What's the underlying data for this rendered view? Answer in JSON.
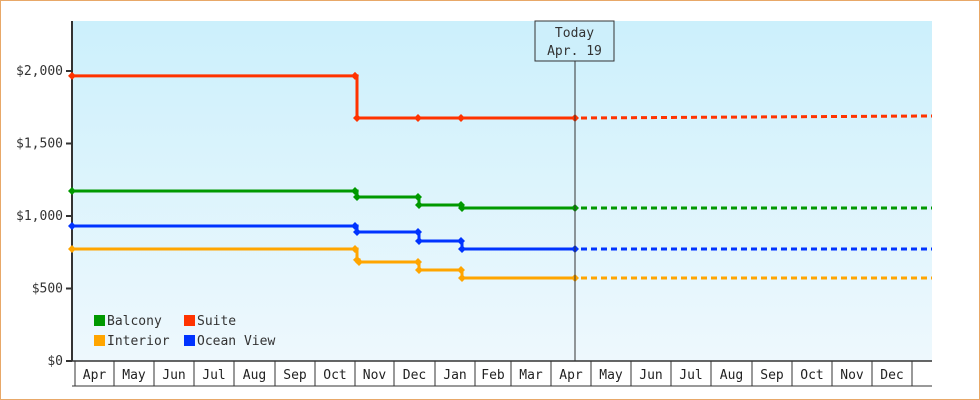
{
  "chart_data": {
    "type": "line",
    "title": "",
    "xlabel": "",
    "ylabel": "",
    "ylim": [
      0,
      2350
    ],
    "y_ticks": [
      "$0",
      "$500",
      "$1,000",
      "$1,500",
      "$2,000"
    ],
    "y_tick_values": [
      0,
      500,
      1000,
      1500,
      2000
    ],
    "x_tick_labels": [
      "Apr",
      "May",
      "Jun",
      "Jul",
      "Aug",
      "Sep",
      "Oct",
      "Nov",
      "Dec",
      "Jan",
      "Feb",
      "Mar",
      "Apr",
      "May",
      "Jun",
      "Jul",
      "Aug",
      "Sep",
      "Oct",
      "Nov",
      "Dec"
    ],
    "grid": false,
    "legend_position": "bottom-left inside",
    "annotation": {
      "line1": "Today",
      "line2": "Apr. 19"
    },
    "step": true,
    "series": [
      {
        "name": "Balcony",
        "color": "#009900",
        "points": [
          [
            "Apr 1",
            1172
          ],
          [
            "Oct 31",
            1172
          ],
          [
            "Nov 1",
            1131
          ],
          [
            "Dec 1",
            1131
          ],
          [
            "Dec 2",
            1076
          ],
          [
            "Jan 1",
            1076
          ],
          [
            "Jan 2",
            1055
          ],
          [
            "Apr 19",
            1055
          ]
        ],
        "projection": [
          [
            "Apr 19",
            1055
          ],
          [
            "Dec 31",
            1055
          ]
        ]
      },
      {
        "name": "Suite",
        "color": "#ff3300",
        "points": [
          [
            "Apr 1",
            1966
          ],
          [
            "Oct 31",
            1966
          ],
          [
            "Nov 1",
            1676
          ],
          [
            "Dec 1",
            1676
          ],
          [
            "Jan 1",
            1676
          ],
          [
            "Apr 19",
            1676
          ]
        ],
        "projection": [
          [
            "Apr 19",
            1676
          ],
          [
            "Dec 31",
            1690
          ]
        ]
      },
      {
        "name": "Interior",
        "color": "#ffa500",
        "points": [
          [
            "Apr 1",
            772
          ],
          [
            "Oct 31",
            772
          ],
          [
            "Nov 1",
            697
          ],
          [
            "Nov 2",
            683
          ],
          [
            "Dec 1",
            683
          ],
          [
            "Dec 2",
            628
          ],
          [
            "Jan 1",
            628
          ],
          [
            "Jan 2",
            572
          ],
          [
            "Apr 19",
            572
          ]
        ],
        "projection": [
          [
            "Apr 19",
            572
          ],
          [
            "Dec 31",
            572
          ]
        ]
      },
      {
        "name": "Ocean View",
        "color": "#0033ff",
        "points": [
          [
            "Apr 1",
            931
          ],
          [
            "Oct 31",
            931
          ],
          [
            "Nov 1",
            890
          ],
          [
            "Dec 1",
            890
          ],
          [
            "Dec 2",
            828
          ],
          [
            "Jan 1",
            828
          ],
          [
            "Jan 2",
            772
          ],
          [
            "Apr 19",
            772
          ]
        ],
        "projection": [
          [
            "Apr 19",
            772
          ],
          [
            "Dec 31",
            772
          ]
        ]
      }
    ]
  },
  "legend": [
    {
      "label": "Balcony",
      "color": "#009900"
    },
    {
      "label": "Suite",
      "color": "#ff3300"
    },
    {
      "label": "Interior",
      "color": "#ffa500"
    },
    {
      "label": "Ocean View",
      "color": "#0033ff"
    }
  ],
  "today": {
    "line1": "Today",
    "line2": "Apr. 19"
  }
}
